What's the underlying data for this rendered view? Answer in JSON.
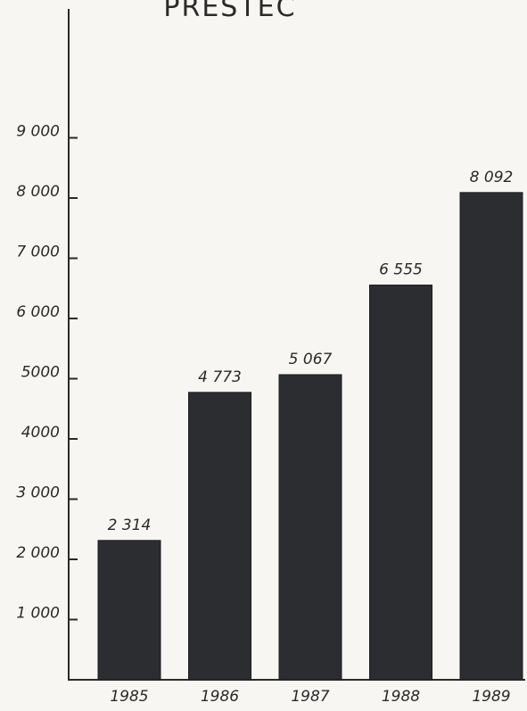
{
  "chart_data": {
    "type": "bar",
    "title": "PRESTEC",
    "categories": [
      "1985",
      "1986",
      "1987",
      "1988",
      "1989"
    ],
    "values": [
      2314,
      4773,
      5067,
      6555,
      8092
    ],
    "value_labels": [
      "2 314",
      "4 773",
      "5 067",
      "6 555",
      "8 092"
    ],
    "yticks": [
      1000,
      2000,
      3000,
      4000,
      5000,
      6000,
      7000,
      8000,
      9000
    ],
    "ytick_labels": [
      "1 000",
      "2 000",
      "3 000",
      "4000",
      "5000",
      "6 000",
      "7 000",
      "8 000",
      "9 000"
    ],
    "ylim": [
      0,
      10000
    ],
    "xlabel": "",
    "ylabel": "",
    "grid": false,
    "bar_color": "#2b2d30"
  }
}
